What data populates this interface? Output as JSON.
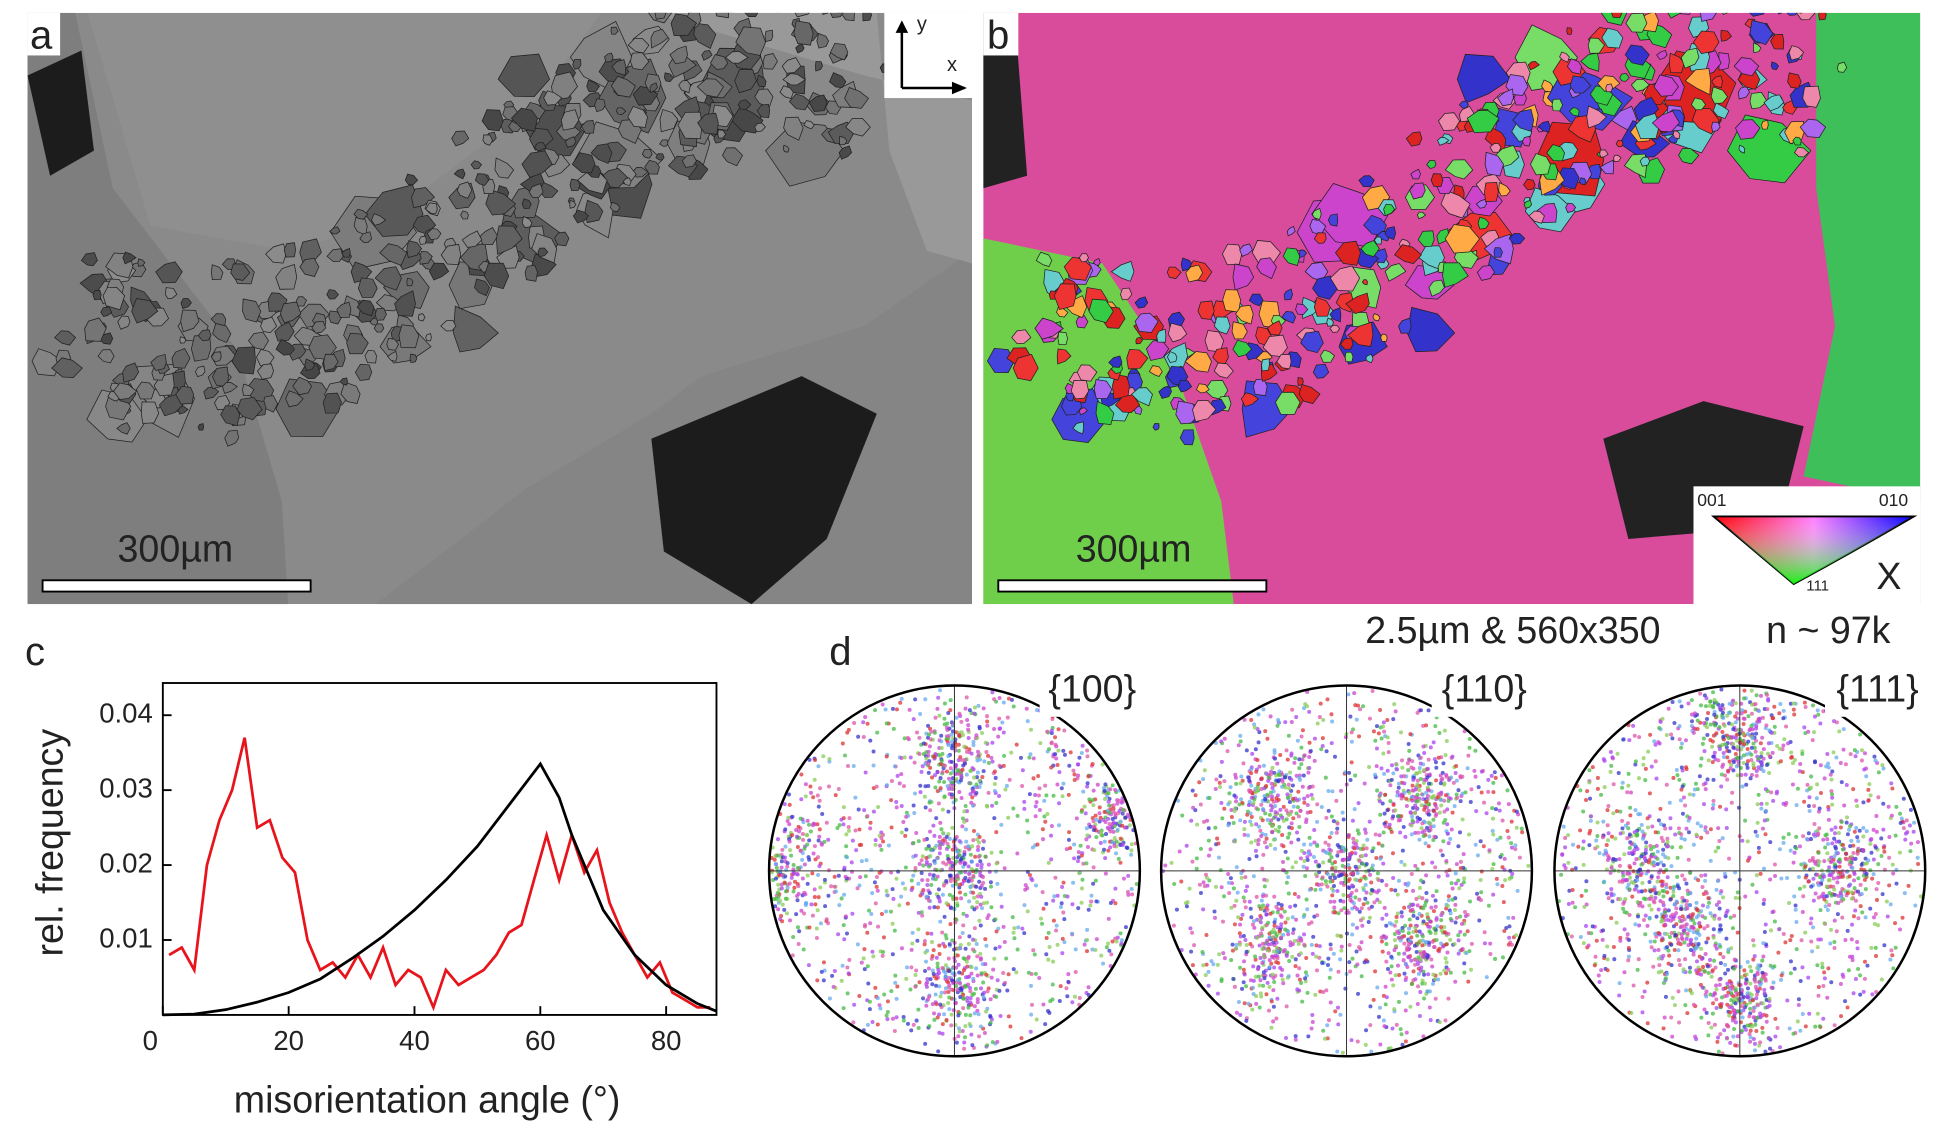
{
  "panel_labels": [
    "a",
    "b",
    "c",
    "d"
  ],
  "scale_bars": [
    "300µm",
    "300µm"
  ],
  "axis_indicator": {
    "y": "y",
    "x": "x"
  },
  "ipf_key": {
    "corners": [
      "001",
      "010",
      "111"
    ],
    "direction": "X"
  },
  "map_info": "2.5µm & 560x350",
  "count": "n ~ 97k",
  "pole_figures": [
    "{100}",
    "{110}",
    "{111}"
  ],
  "chart_data": {
    "type": "line",
    "xlabel": "misorientation angle (°)",
    "ylabel": "rel. frequency",
    "xlim": [
      0,
      88
    ],
    "ylim": [
      0,
      0.0443
    ],
    "xticks": [
      0,
      20,
      40,
      60,
      80
    ],
    "yticks": [
      0.01,
      0.02,
      0.03,
      0.04
    ],
    "series": [
      {
        "color": "#e8141b",
        "x": [
          1,
          3,
          5,
          7,
          9,
          11,
          13,
          15,
          17,
          19,
          21,
          23,
          25,
          27,
          29,
          31,
          33,
          35,
          37,
          39,
          41,
          43,
          45,
          47,
          49,
          51,
          53,
          55,
          57,
          59,
          61,
          63,
          65,
          67,
          69,
          71,
          73,
          75,
          77,
          79,
          81,
          83,
          85,
          87
        ],
        "values": [
          0.008,
          0.009,
          0.006,
          0.02,
          0.026,
          0.03,
          0.037,
          0.025,
          0.026,
          0.021,
          0.019,
          0.01,
          0.006,
          0.007,
          0.005,
          0.008,
          0.005,
          0.009,
          0.004,
          0.006,
          0.005,
          0.001,
          0.006,
          0.004,
          0.005,
          0.006,
          0.008,
          0.011,
          0.012,
          0.018,
          0.024,
          0.018,
          0.024,
          0.019,
          0.022,
          0.015,
          0.011,
          0.008,
          0.005,
          0.007,
          0.003,
          0.002,
          0.001,
          0.001
        ]
      },
      {
        "color": "#000000",
        "x": [
          0,
          5,
          10,
          15,
          20,
          25,
          30,
          35,
          40,
          45,
          50,
          55,
          60,
          63,
          65,
          70,
          75,
          80,
          85,
          88
        ],
        "values": [
          0,
          0.0001,
          0.0007,
          0.0017,
          0.003,
          0.0048,
          0.0075,
          0.0105,
          0.014,
          0.018,
          0.0225,
          0.028,
          0.0335,
          0.029,
          0.024,
          0.014,
          0.008,
          0.004,
          0.0015,
          0.0005
        ]
      }
    ]
  }
}
